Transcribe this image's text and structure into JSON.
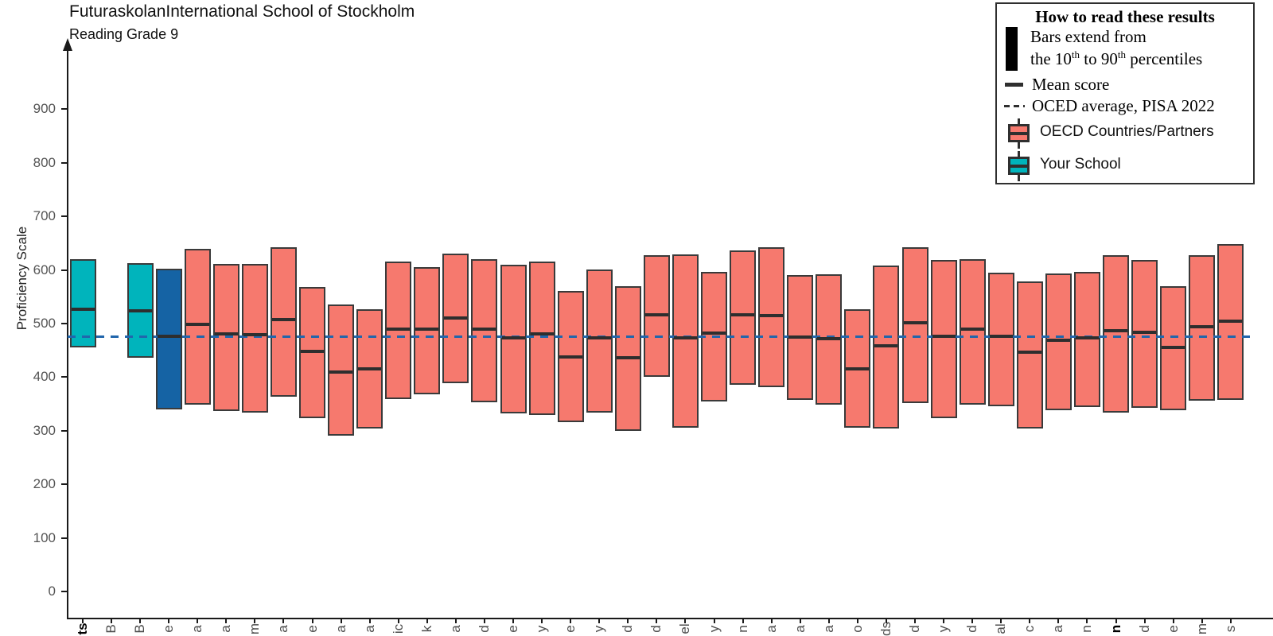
{
  "title": "FuturaskolanInternational School of Stockholm",
  "subtitle": "Reading Grade 9",
  "y_axis_label": "Proficiency Scale",
  "legend": {
    "title": "How to read these results",
    "range_line1": "Bars extend from",
    "range_line2": {
      "a": "the 10",
      "sup_a": "th",
      "b": " to 90",
      "sup_b": "th",
      "c": " percentiles"
    },
    "mean_label": "Mean score",
    "oecd_avg_label": "OCED average, PISA 2022",
    "oecd_box_label": "OECD Countries/Partners",
    "school_box_label": "Your School"
  },
  "colors": {
    "school": "#00b4bc",
    "reference": "#1563a4",
    "oecd": "#f6796e",
    "bar_border": "#3a3a3a",
    "mean_line": "#2e2e2e",
    "dashed_line": "#2166ac",
    "axis": "#1a1a1a"
  },
  "chart_data": {
    "type": "bar",
    "variant": "vertical range bars from 10th to 90th percentile with mean tick",
    "title": "FuturaskolanInternational School of Stockholm",
    "subtitle": "Reading Grade 9",
    "ylabel": "Proficiency Scale",
    "yticks": [
      0,
      100,
      200,
      300,
      400,
      500,
      600,
      700,
      800,
      900
    ],
    "ylim": [
      -50,
      1010
    ],
    "grid": false,
    "legend_position": "top-right",
    "oecd_average_line_value": 476,
    "bars": [
      {
        "tick_label_visible": "ts",
        "bold": true,
        "group": "school",
        "p10": 456,
        "p90": 620,
        "mean": 526
      },
      {
        "tick_label_visible": "B",
        "bold": false,
        "group": "none",
        "p10": null,
        "p90": null,
        "mean": null
      },
      {
        "tick_label_visible": "B",
        "bold": false,
        "group": "school",
        "p10": 436,
        "p90": 613,
        "mean": 523
      },
      {
        "tick_label_visible": "e",
        "bold": false,
        "group": "reference",
        "p10": 340,
        "p90": 602,
        "mean": 476
      },
      {
        "tick_label_visible": "a",
        "bold": false,
        "group": "oecd",
        "p10": 349,
        "p90": 640,
        "mean": 498
      },
      {
        "tick_label_visible": "a",
        "bold": false,
        "group": "oecd",
        "p10": 337,
        "p90": 612,
        "mean": 480
      },
      {
        "tick_label_visible": "m",
        "bold": false,
        "group": "oecd",
        "p10": 334,
        "p90": 611,
        "mean": 479
      },
      {
        "tick_label_visible": "a",
        "bold": false,
        "group": "oecd",
        "p10": 363,
        "p90": 643,
        "mean": 507
      },
      {
        "tick_label_visible": "e",
        "bold": false,
        "group": "oecd",
        "p10": 324,
        "p90": 568,
        "mean": 448
      },
      {
        "tick_label_visible": "a",
        "bold": false,
        "group": "oecd",
        "p10": 291,
        "p90": 535,
        "mean": 409
      },
      {
        "tick_label_visible": "a",
        "bold": false,
        "group": "oecd",
        "p10": 304,
        "p90": 526,
        "mean": 415
      },
      {
        "tick_label_visible": "ic",
        "bold": false,
        "group": "oecd",
        "p10": 359,
        "p90": 616,
        "mean": 489
      },
      {
        "tick_label_visible": "k",
        "bold": false,
        "group": "oecd",
        "p10": 368,
        "p90": 605,
        "mean": 489
      },
      {
        "tick_label_visible": "a",
        "bold": false,
        "group": "oecd",
        "p10": 388,
        "p90": 631,
        "mean": 511
      },
      {
        "tick_label_visible": "d",
        "bold": false,
        "group": "oecd",
        "p10": 353,
        "p90": 620,
        "mean": 490
      },
      {
        "tick_label_visible": "e",
        "bold": false,
        "group": "oecd",
        "p10": 332,
        "p90": 610,
        "mean": 474
      },
      {
        "tick_label_visible": "y",
        "bold": false,
        "group": "oecd",
        "p10": 329,
        "p90": 616,
        "mean": 480
      },
      {
        "tick_label_visible": "e",
        "bold": false,
        "group": "oecd",
        "p10": 316,
        "p90": 561,
        "mean": 438
      },
      {
        "tick_label_visible": "y",
        "bold": false,
        "group": "oecd",
        "p10": 334,
        "p90": 601,
        "mean": 473
      },
      {
        "tick_label_visible": "d",
        "bold": false,
        "group": "oecd",
        "p10": 299,
        "p90": 570,
        "mean": 436
      },
      {
        "tick_label_visible": "d",
        "bold": false,
        "group": "oecd",
        "p10": 400,
        "p90": 627,
        "mean": 516
      },
      {
        "tick_label_visible": "el",
        "bold": false,
        "group": "oecd",
        "p10": 306,
        "p90": 629,
        "mean": 474
      },
      {
        "tick_label_visible": "y",
        "bold": false,
        "group": "oecd",
        "p10": 354,
        "p90": 597,
        "mean": 482
      },
      {
        "tick_label_visible": "n",
        "bold": false,
        "group": "oecd",
        "p10": 386,
        "p90": 637,
        "mean": 516
      },
      {
        "tick_label_visible": "a",
        "bold": false,
        "group": "oecd",
        "p10": 381,
        "p90": 642,
        "mean": 515
      },
      {
        "tick_label_visible": "a",
        "bold": false,
        "group": "oecd",
        "p10": 358,
        "p90": 591,
        "mean": 475
      },
      {
        "tick_label_visible": "a",
        "bold": false,
        "group": "oecd",
        "p10": 349,
        "p90": 592,
        "mean": 472
      },
      {
        "tick_label_visible": "o",
        "bold": false,
        "group": "oecd",
        "p10": 306,
        "p90": 526,
        "mean": 415
      },
      {
        "tick_label_visible": "ds",
        "bold": false,
        "group": "oecd",
        "p10": 304,
        "p90": 608,
        "mean": 459
      },
      {
        "tick_label_visible": "d",
        "bold": false,
        "group": "oecd",
        "p10": 352,
        "p90": 642,
        "mean": 501
      },
      {
        "tick_label_visible": "y",
        "bold": false,
        "group": "oecd",
        "p10": 324,
        "p90": 618,
        "mean": 477
      },
      {
        "tick_label_visible": "d",
        "bold": false,
        "group": "oecd",
        "p10": 348,
        "p90": 620,
        "mean": 489
      },
      {
        "tick_label_visible": "al",
        "bold": false,
        "group": "oecd",
        "p10": 346,
        "p90": 595,
        "mean": 477
      },
      {
        "tick_label_visible": "c",
        "bold": false,
        "group": "oecd",
        "p10": 304,
        "p90": 579,
        "mean": 447
      },
      {
        "tick_label_visible": "a",
        "bold": false,
        "group": "oecd",
        "p10": 338,
        "p90": 593,
        "mean": 469
      },
      {
        "tick_label_visible": "n",
        "bold": false,
        "group": "oecd",
        "p10": 344,
        "p90": 597,
        "mean": 474
      },
      {
        "tick_label_visible": "n",
        "bold": true,
        "group": "oecd",
        "p10": 334,
        "p90": 628,
        "mean": 487
      },
      {
        "tick_label_visible": "d",
        "bold": false,
        "group": "oecd",
        "p10": 343,
        "p90": 618,
        "mean": 483
      },
      {
        "tick_label_visible": "e",
        "bold": false,
        "group": "oecd",
        "p10": 338,
        "p90": 569,
        "mean": 456
      },
      {
        "tick_label_visible": "m",
        "bold": false,
        "group": "oecd",
        "p10": 356,
        "p90": 627,
        "mean": 494
      },
      {
        "tick_label_visible": "s",
        "bold": false,
        "group": "oecd",
        "p10": 357,
        "p90": 648,
        "mean": 504
      }
    ]
  }
}
